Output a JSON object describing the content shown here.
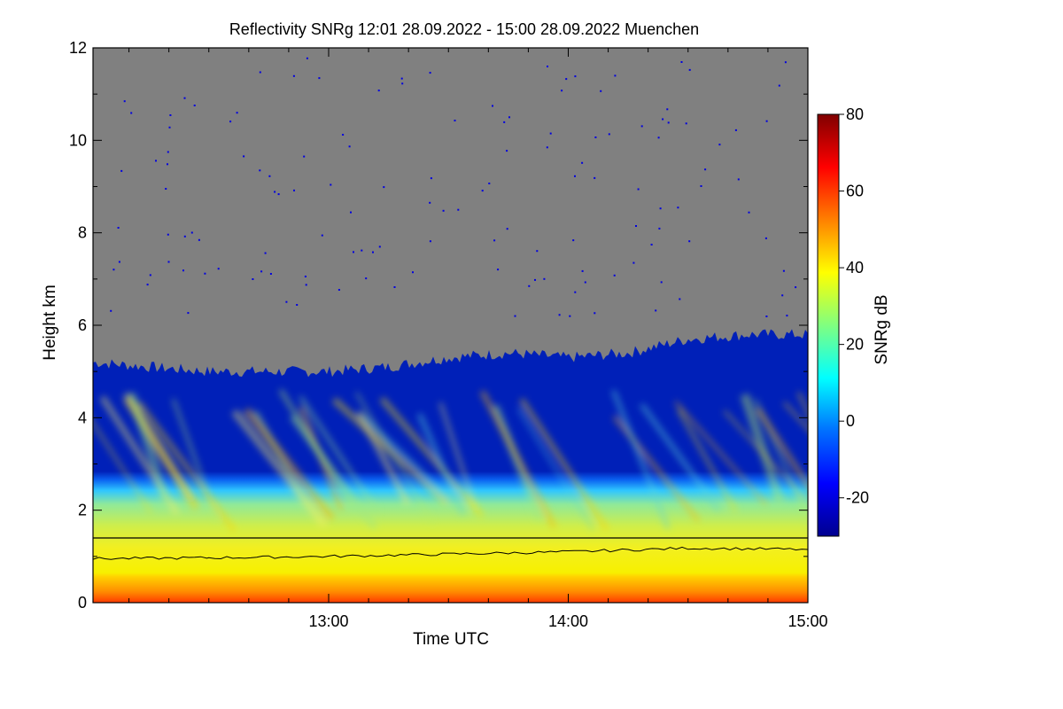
{
  "chart_data": {
    "type": "heatmap",
    "title": "Reflectivity SNRg   12:01 28.09.2022 - 15:00 28.09.2022 Muenchen",
    "xlabel": "Time UTC",
    "ylabel": "Height km",
    "x_range": [
      "12:01",
      "15:00"
    ],
    "x_ticks": [
      "13:00",
      "14:00",
      "15:00"
    ],
    "y_range": [
      0,
      12
    ],
    "y_ticks": [
      0,
      2,
      4,
      6,
      8,
      10,
      12
    ],
    "colorbar": {
      "label": "SNRg dB",
      "range": [
        -30,
        80
      ],
      "ticks": [
        -20,
        0,
        20,
        40,
        60,
        80
      ]
    },
    "colors": {
      "no_signal": "#808080",
      "reference_line": "#000000"
    },
    "reference_line_height_km": 1.4,
    "echo_top_km": [
      {
        "time": "12:01",
        "height": 5.2
      },
      {
        "time": "12:15",
        "height": 5.1
      },
      {
        "time": "12:30",
        "height": 5.0
      },
      {
        "time": "12:45",
        "height": 5.0
      },
      {
        "time": "13:00",
        "height": 5.0
      },
      {
        "time": "13:15",
        "height": 5.1
      },
      {
        "time": "13:30",
        "height": 5.3
      },
      {
        "time": "13:45",
        "height": 5.4
      },
      {
        "time": "14:00",
        "height": 5.3
      },
      {
        "time": "14:15",
        "height": 5.4
      },
      {
        "time": "14:30",
        "height": 5.7
      },
      {
        "time": "14:45",
        "height": 5.8
      },
      {
        "time": "15:00",
        "height": 5.8
      }
    ],
    "boundary_line_km": [
      {
        "time": "12:01",
        "height": 0.95
      },
      {
        "time": "12:30",
        "height": 0.97
      },
      {
        "time": "13:00",
        "height": 1.0
      },
      {
        "time": "13:30",
        "height": 1.05
      },
      {
        "time": "14:00",
        "height": 1.1
      },
      {
        "time": "14:30",
        "height": 1.18
      },
      {
        "time": "15:00",
        "height": 1.15
      }
    ]
  }
}
